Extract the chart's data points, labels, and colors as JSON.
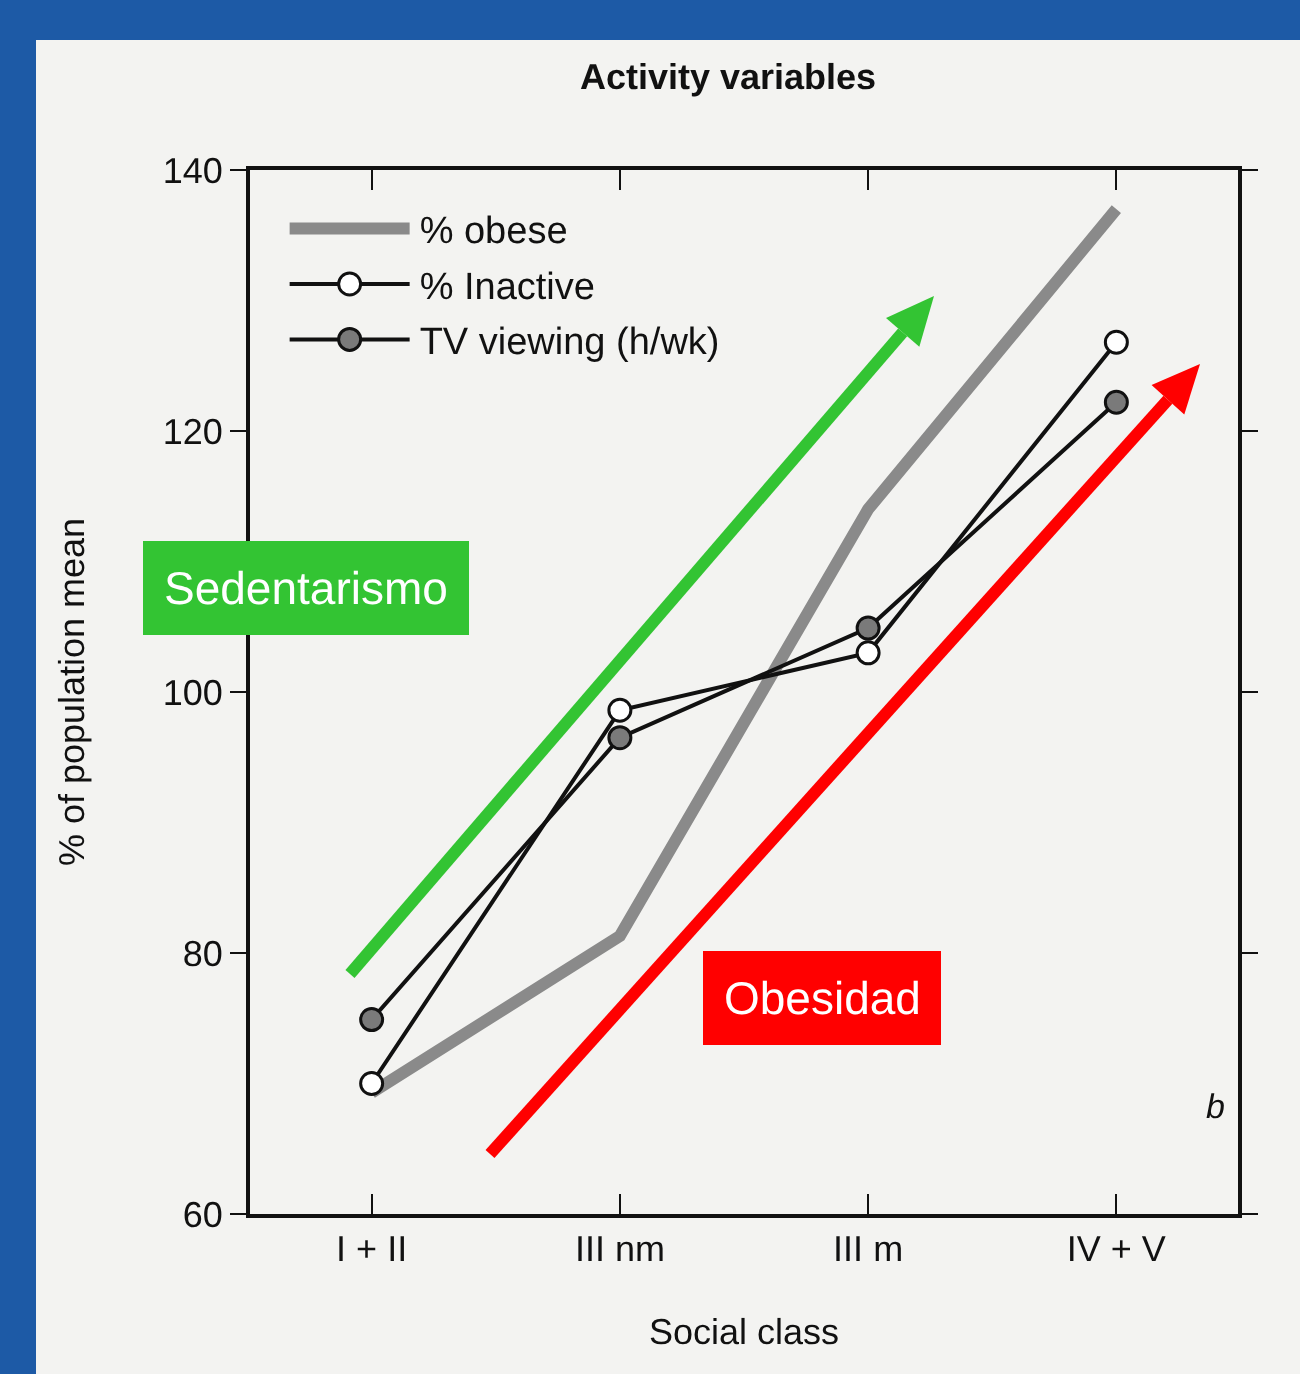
{
  "chart_data": {
    "type": "line",
    "title": "Activity variables",
    "xlabel": "Social class",
    "ylabel": "% of population mean",
    "categories": [
      "I + II",
      "III nm",
      "III m",
      "IV + V"
    ],
    "series": [
      {
        "name": "% obese",
        "color": "#8a8a8a",
        "marker": "none",
        "values": [
          69.3,
          81.3,
          114,
          137
        ]
      },
      {
        "name": "% Inactive",
        "color": "#ffffff",
        "marker": "circle",
        "values": [
          70,
          98.6,
          103,
          126.8
        ]
      },
      {
        "name": "TV viewing (h/wk)",
        "color": "#7a7a7a",
        "marker": "circle",
        "values": [
          74.9,
          96.5,
          104.9,
          122.2
        ]
      }
    ],
    "ylim": [
      60,
      140
    ],
    "yticks": [
      60,
      80,
      100,
      120,
      140
    ],
    "legend": "top left",
    "annotations": [
      "Sedentarismo",
      "Obesidad",
      "b"
    ]
  }
}
